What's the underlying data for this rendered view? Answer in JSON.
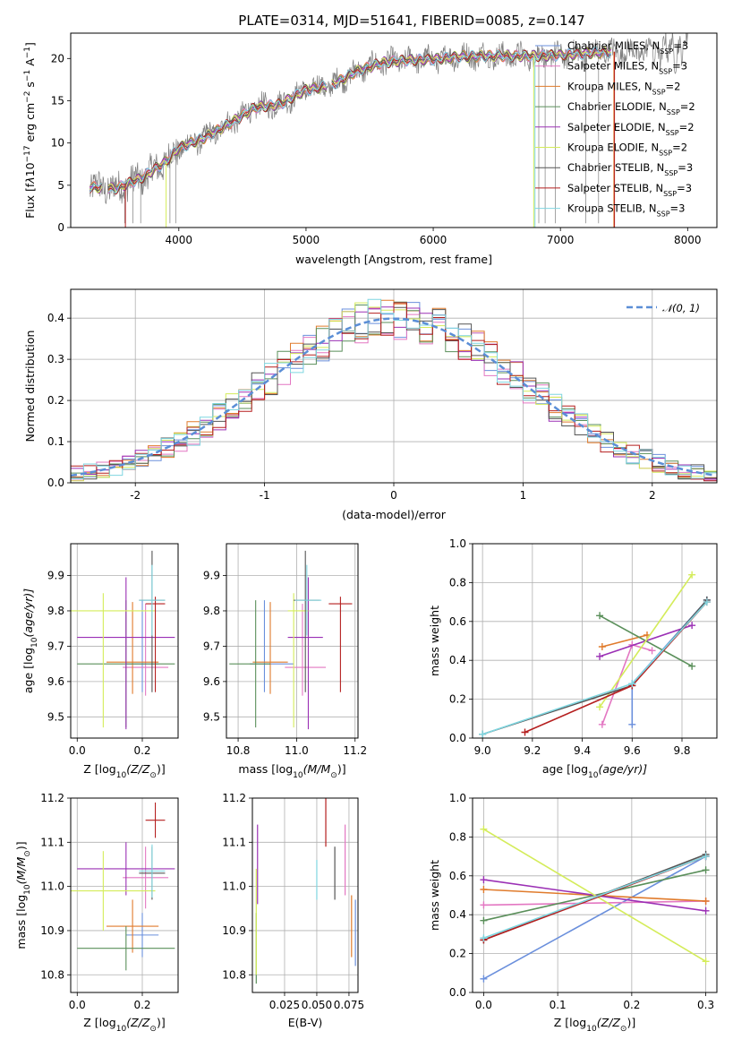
{
  "figure": {
    "title": "PLATE=0314, MJD=51641, FIBERID=0085, z=0.147"
  },
  "colors": {
    "Chabrier MILES": "#6a8fdc",
    "Salpeter MILES": "#e377c2",
    "Kroupa MILES": "#e07b2c",
    "Chabrier ELODIE": "#5a8f5a",
    "Salpeter ELODIE": "#9b30b5",
    "Kroupa ELODIE": "#d4ec5a",
    "Chabrier STELIB": "#555555",
    "Salpeter STELIB": "#b51f1f",
    "Kroupa STELIB": "#7fd6e0",
    "data": "#7f7f7f",
    "gauss": "#5b8ed6"
  },
  "chart_data": [
    {
      "id": "spectrum",
      "type": "line",
      "title": "PLATE=0314, MJD=51641, FIBERID=0085, z=0.147",
      "xlabel": "wavelength [Angstrom, rest frame]",
      "ylabel_parts": [
        "Flux [f",
        "λ",
        "10",
        "−17",
        " erg cm",
        "−2",
        " s",
        "−1",
        " A",
        "−1",
        "]"
      ],
      "xlim": [
        3150,
        8230
      ],
      "ylim": [
        0,
        23
      ],
      "xticks": [
        4000,
        5000,
        6000,
        7000,
        8000
      ],
      "yticks": [
        0,
        5,
        10,
        15,
        20
      ],
      "continuum": {
        "x": [
          3300,
          3500,
          3700,
          3900,
          4000,
          4200,
          4400,
          4600,
          4800,
          5000,
          5200,
          5400,
          5600,
          5800,
          6000,
          6200,
          6400,
          6600,
          6800,
          7000,
          7200,
          7400,
          7600,
          7800,
          8000
        ],
        "y": [
          4.8,
          4.6,
          5.8,
          7.8,
          9.4,
          10.6,
          12.3,
          14.2,
          14.6,
          16.3,
          16.8,
          18.5,
          19.5,
          19.8,
          19.9,
          20.2,
          20.3,
          20.3,
          20.3,
          20.4,
          20.6,
          20.8,
          20.8,
          21.0,
          21.2
        ]
      },
      "legend": [
        {
          "label": "Chabrier MILES, N",
          "sub": "SSP",
          "eq": "=3"
        },
        {
          "label": "Salpeter MILES, N",
          "sub": "SSP",
          "eq": "=3"
        },
        {
          "label": "Kroupa MILES, N",
          "sub": "SSP",
          "eq": "=2"
        },
        {
          "label": "Chabrier ELODIE, N",
          "sub": "SSP",
          "eq": "=2"
        },
        {
          "label": "Salpeter ELODIE, N",
          "sub": "SSP",
          "eq": "=2"
        },
        {
          "label": "Kroupa ELODIE, N",
          "sub": "SSP",
          "eq": "=2"
        },
        {
          "label": "Chabrier STELIB, N",
          "sub": "SSP",
          "eq": "=3"
        },
        {
          "label": "Salpeter STELIB, N",
          "sub": "SSP",
          "eq": "=3"
        },
        {
          "label": "Kroupa STELIB, N",
          "sub": "SSP",
          "eq": "=3"
        }
      ],
      "legend_placement": "upper-right"
    },
    {
      "id": "residuals",
      "type": "histogram",
      "xlabel": "(data-model)/error",
      "ylabel": "Normed distribution",
      "xlim": [
        -2.5,
        2.5
      ],
      "ylim": [
        0,
        0.47
      ],
      "xticks": [
        -2,
        -1,
        0,
        1,
        2
      ],
      "yticks": [
        0.0,
        0.1,
        0.2,
        0.3,
        0.4
      ],
      "grid": true,
      "legend": [
        {
          "label": "𝒩(0, 1)"
        }
      ],
      "legend_placement": "upper-right"
    },
    {
      "id": "age-vs-Z",
      "type": "errorbar",
      "xlabel_parts": [
        "Z [log",
        "10",
        "(Z/Z",
        "⊙",
        ")]"
      ],
      "ylabel_parts": [
        "age  [log",
        "10",
        "(age/yr)]"
      ],
      "xlim": [
        -0.02,
        0.31
      ],
      "ylim": [
        9.44,
        9.99
      ],
      "xticks": [
        0.0,
        0.2
      ],
      "yticks": [
        9.5,
        9.6,
        9.7,
        9.8,
        9.9
      ],
      "grid": true
    },
    {
      "id": "age-vs-mass",
      "type": "errorbar",
      "xlabel_parts": [
        "mass [log",
        "10",
        "(M/M",
        "⊙",
        ")]"
      ],
      "xlim": [
        10.76,
        11.21
      ],
      "ylim": [
        9.44,
        9.99
      ],
      "xticks": [
        10.8,
        11.0,
        11.2
      ],
      "yticks": [
        9.5,
        9.6,
        9.7,
        9.8,
        9.9
      ],
      "grid": true
    },
    {
      "id": "weight-vs-age",
      "type": "line",
      "xlabel_parts": [
        "age  [log",
        "10",
        "(age/yr)]"
      ],
      "ylabel": "mass weight",
      "xlim": [
        8.96,
        9.94
      ],
      "ylim": [
        0,
        1.0
      ],
      "xticks": [
        9.0,
        9.2,
        9.4,
        9.6,
        9.8
      ],
      "yticks": [
        0.0,
        0.2,
        0.4,
        0.6,
        0.8,
        1.0
      ],
      "grid": true
    },
    {
      "id": "mass-vs-Z",
      "type": "errorbar",
      "xlabel_parts": [
        "Z [log",
        "10",
        "(Z/Z",
        "⊙",
        ")]"
      ],
      "ylabel_parts": [
        "mass [log",
        "10",
        "(M/M",
        "⊙",
        ")]"
      ],
      "xlim": [
        -0.02,
        0.31
      ],
      "ylim": [
        10.76,
        11.2
      ],
      "xticks": [
        0.0,
        0.2
      ],
      "yticks": [
        10.8,
        10.9,
        11.0,
        11.1,
        11.2
      ],
      "grid": true
    },
    {
      "id": "mass-vs-ebv",
      "type": "errorbar",
      "xlabel": "E(B-V)",
      "xlim": [
        0.0,
        0.082
      ],
      "ylim": [
        10.76,
        11.2
      ],
      "xticks": [
        0.025,
        0.05,
        0.075
      ],
      "xticklabels": [
        "0.025",
        "0.050",
        "0.075"
      ],
      "yticks": [
        10.8,
        10.9,
        11.0,
        11.1,
        11.2
      ],
      "grid": true
    },
    {
      "id": "weight-vs-Z",
      "type": "line",
      "xlabel_parts": [
        "Z [log",
        "10",
        "(Z/Z",
        "⊙",
        ")]"
      ],
      "ylabel": "mass weight",
      "xlim": [
        -0.015,
        0.315
      ],
      "ylim": [
        0,
        1.0
      ],
      "xticks": [
        0.0,
        0.1,
        0.2,
        0.3
      ],
      "yticks": [
        0.0,
        0.2,
        0.4,
        0.6,
        0.8,
        1.0
      ],
      "grid": true
    }
  ],
  "models": [
    {
      "name": "Chabrier MILES",
      "Z": 0.2,
      "Zerr": 0.05,
      "age": 9.65,
      "agelo": 0.08,
      "agehi": 0.18,
      "mass": 10.89,
      "masserr": 0.05,
      "mlo": 0.05,
      "mhi": 0.1,
      "ebv": 0.08,
      "ebvlo": 10.82,
      "ebvhi": 10.97,
      "ages": [
        9.6,
        9.6,
        9.9
      ],
      "wages": [
        0.07,
        0.28,
        0.71
      ],
      "Zs": [
        0.0,
        0.3
      ],
      "wZ": [
        0.07,
        0.7
      ]
    },
    {
      "name": "Salpeter MILES",
      "Z": 0.21,
      "Zerr": 0.07,
      "age": 9.64,
      "agelo": 0.08,
      "agehi": 0.18,
      "mass": 11.02,
      "masserr": 0.07,
      "mlo": 0.06,
      "mhi": 0.08,
      "ebv": 0.072,
      "ebvlo": 10.98,
      "ebvhi": 11.14,
      "ages": [
        9.48,
        9.6,
        9.68
      ],
      "wages": [
        0.07,
        0.48,
        0.45
      ],
      "Zs": [
        0.0,
        0.3
      ],
      "wZ": [
        0.45,
        0.47
      ]
    },
    {
      "name": "Kroupa MILES",
      "Z": 0.17,
      "Zerr": 0.08,
      "age": 9.655,
      "agelo": 0.09,
      "agehi": 0.17,
      "mass": 10.91,
      "masserr": 0.06,
      "mlo": 0.06,
      "mhi": 0.06,
      "ebv": 0.077,
      "ebvlo": 10.84,
      "ebvhi": 10.98,
      "ages": [
        9.48,
        9.66
      ],
      "wages": [
        0.47,
        0.53
      ],
      "Zs": [
        0.0,
        0.3
      ],
      "wZ": [
        0.53,
        0.47
      ]
    },
    {
      "name": "Chabrier ELODIE",
      "Z": 0.15,
      "Zerr": 0.15,
      "age": 9.65,
      "agelo": 0.18,
      "agehi": 0.18,
      "mass": 10.86,
      "masserr": 0.05,
      "mlo": 0.09,
      "mhi": 0.05,
      "ebv": 0.003,
      "ebvlo": 10.78,
      "ebvhi": 10.94,
      "ages": [
        9.47,
        9.84
      ],
      "wages": [
        0.63,
        0.37
      ],
      "Zs": [
        0.0,
        0.3
      ],
      "wZ": [
        0.37,
        0.63
      ]
    },
    {
      "name": "Salpeter ELODIE",
      "Z": 0.15,
      "Zerr": 0.15,
      "age": 9.725,
      "agelo": 0.26,
      "agehi": 0.17,
      "mass": 11.04,
      "masserr": 0.06,
      "mlo": 0.07,
      "mhi": 0.05,
      "ebv": 0.004,
      "ebvlo": 10.96,
      "ebvhi": 11.14,
      "ages": [
        9.47,
        9.84
      ],
      "wages": [
        0.42,
        0.58
      ],
      "Zs": [
        0.0,
        0.3
      ],
      "wZ": [
        0.58,
        0.42
      ]
    },
    {
      "name": "Kroupa ELODIE",
      "Z": 0.08,
      "Zerr": 0.16,
      "age": 9.8,
      "agelo": 0.33,
      "agehi": 0.05,
      "mass": 10.99,
      "masserr": 0.09,
      "mlo": 0.02,
      "mhi": 0.05,
      "ebv": 0.003,
      "ebvlo": 10.8,
      "ebvhi": 11.04,
      "ages": [
        9.47,
        9.84
      ],
      "wages": [
        0.16,
        0.84
      ],
      "Zs": [
        0.0,
        0.3
      ],
      "wZ": [
        0.84,
        0.16
      ]
    },
    {
      "name": "Chabrier STELIB",
      "Z": 0.23,
      "Zerr": 0.04,
      "age": 9.83,
      "agelo": 0.26,
      "agehi": 0.14,
      "mass": 11.03,
      "masserr": 0.06,
      "mlo": 0.04,
      "mhi": 0.05,
      "ebv": 0.064,
      "ebvlo": 10.97,
      "ebvhi": 11.09,
      "ages": [
        9.0,
        9.6,
        9.9
      ],
      "wages": [
        0.02,
        0.27,
        0.71
      ],
      "Zs": [
        0.0,
        0.3
      ],
      "wZ": [
        0.27,
        0.71
      ]
    },
    {
      "name": "Salpeter STELIB",
      "Z": 0.24,
      "Zerr": 0.03,
      "age": 9.82,
      "agelo": 0.25,
      "agehi": 0.02,
      "mass": 11.15,
      "masserr": 0.04,
      "mlo": 0.04,
      "mhi": 0.04,
      "ebv": 0.057,
      "ebvlo": 11.09,
      "ebvhi": 11.21,
      "ages": [
        9.17,
        9.6,
        9.9
      ],
      "wages": [
        0.03,
        0.27,
        0.7
      ],
      "Zs": [
        0.0,
        0.3
      ],
      "wZ": [
        0.27,
        0.7
      ]
    },
    {
      "name": "Kroupa STELIB",
      "Z": 0.23,
      "Zerr": 0.04,
      "age": 9.83,
      "agelo": 0.1,
      "agehi": 0.1,
      "mass": 11.035,
      "masserr": 0.06,
      "mlo": 0.04,
      "mhi": 0.05,
      "ebv": 0.05,
      "ebvlo": 10.97,
      "ebvhi": 11.06,
      "ages": [
        9.0,
        9.6,
        9.9
      ],
      "wages": [
        0.02,
        0.28,
        0.7
      ],
      "Zs": [
        0.0,
        0.3
      ],
      "wZ": [
        0.28,
        0.7
      ]
    }
  ]
}
